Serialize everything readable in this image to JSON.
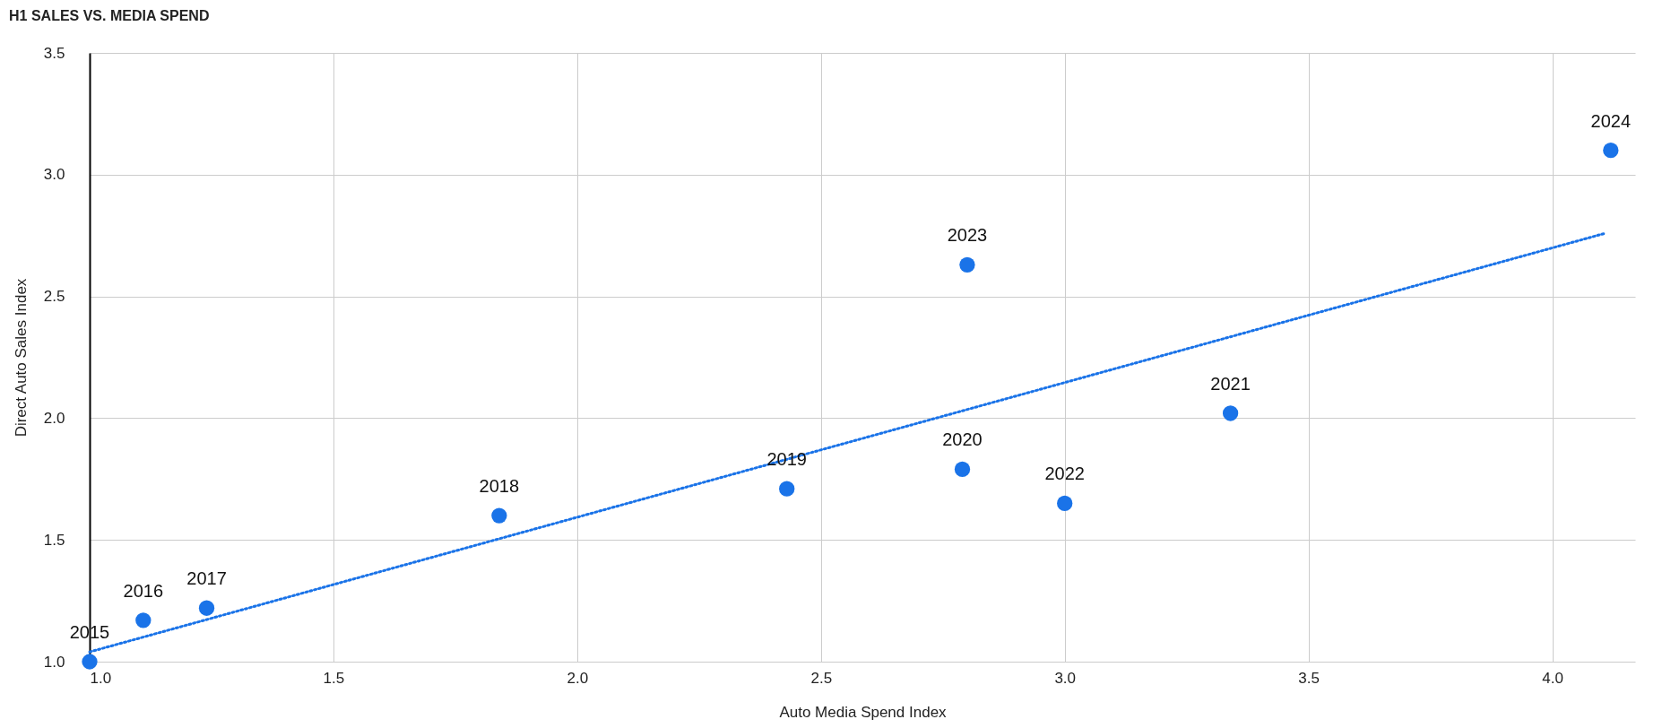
{
  "chart_data": {
    "type": "scatter",
    "title": "H1 SALES VS. MEDIA SPEND",
    "xlabel": "Auto Media Spend Index",
    "ylabel": "Direct Auto Sales Index",
    "xlim": [
      1,
      4.17
    ],
    "ylim": [
      1,
      3.5
    ],
    "xticks": [
      {
        "value": 1,
        "label": "1.0"
      },
      1.5,
      {
        "value": 2,
        "label": "2.0"
      },
      2.5,
      {
        "value": 3,
        "label": "3.0"
      },
      3.5,
      {
        "value": 4,
        "label": "4.0"
      }
    ],
    "yticks": [
      {
        "value": 1,
        "label": "1.0"
      },
      1.5,
      {
        "value": 2,
        "label": "2.0"
      },
      2.5,
      {
        "value": 3,
        "label": "3.0"
      },
      3.5
    ],
    "grid": true,
    "series": [
      {
        "marker": "circle",
        "color": "#1a73e8",
        "x": [
          1.0,
          1.11,
          1.24,
          1.84,
          2.43,
          2.79,
          3.34,
          3.0,
          2.8,
          4.12
        ],
        "values": [
          1.0,
          1.17,
          1.22,
          1.6,
          1.71,
          1.79,
          2.02,
          1.65,
          2.63,
          3.1
        ]
      },
      {
        "type": "line",
        "line_style": "dotted",
        "color": "#1a73e8",
        "x": [
          1.0,
          4.11
        ],
        "values": [
          1.04,
          2.76
        ]
      }
    ],
    "annotations": [
      {
        "text": "2015",
        "x": 1.0,
        "y": 1.0
      },
      {
        "text": "2016",
        "x": 1.11,
        "y": 1.17
      },
      {
        "text": "2017",
        "x": 1.24,
        "y": 1.22
      },
      {
        "text": "2018",
        "x": 1.84,
        "y": 1.6
      },
      {
        "text": "2019",
        "x": 2.43,
        "y": 1.71
      },
      {
        "text": "2020",
        "x": 2.79,
        "y": 1.79
      },
      {
        "text": "2021",
        "x": 3.34,
        "y": 2.02
      },
      {
        "text": "2022",
        "x": 3.0,
        "y": 1.65
      },
      {
        "text": "2023",
        "x": 2.8,
        "y": 2.63
      },
      {
        "text": "2024",
        "x": 4.12,
        "y": 3.1
      }
    ]
  }
}
